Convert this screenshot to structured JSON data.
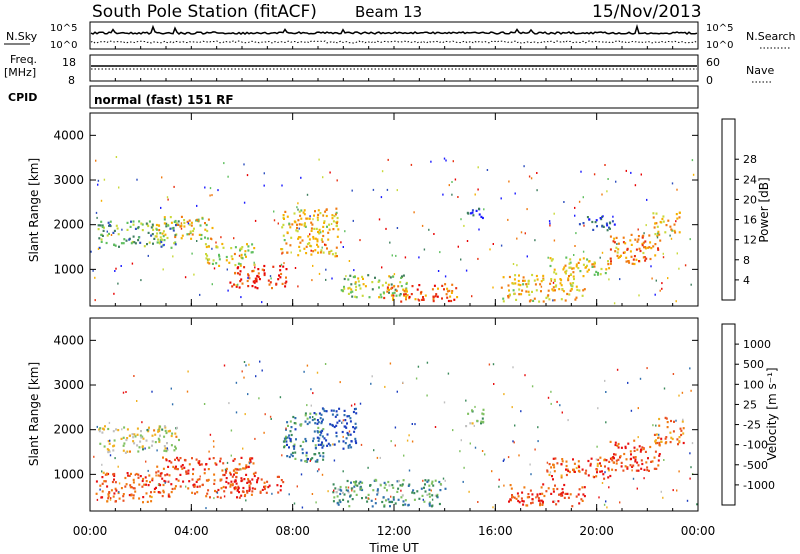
{
  "header": {
    "station": "South Pole Station (fitACF)",
    "beam": "Beam 13",
    "date": "15/Nov/2013"
  },
  "status_panels": {
    "nsky_label": "N.Sky",
    "nsearch_label": "N.Search",
    "noise_left_ticks": [
      "10^5",
      "10^0"
    ],
    "noise_right_ticks": [
      "10^5",
      "10^0"
    ],
    "freq_label_line1": "Freq.",
    "freq_label_line2": "[MHz]",
    "freq_ticks": [
      "18",
      "8"
    ],
    "nave_label": "Nave",
    "nave_ticks": [
      "60",
      "0"
    ],
    "cpid_label": "CPID",
    "cpid_value": "normal (fast) 151 RF"
  },
  "chart_data": [
    {
      "type": "heatmap",
      "panel": "power",
      "ylabel": "Slant Range [km]",
      "xlabel": "",
      "xlim": [
        0,
        24
      ],
      "ylim": [
        180,
        4500
      ],
      "y_ticks": [
        "1000",
        "2000",
        "3000",
        "4000"
      ],
      "colorbar": {
        "label": "Power [dB]",
        "ticks": [
          "4",
          "8",
          "12",
          "16",
          "20",
          "24",
          "28"
        ],
        "colors": [
          "#1a1aff",
          "#2e4fbf",
          "#3f7f5f",
          "#5fbf5f",
          "#c9d93a",
          "#f5b000",
          "#f07a10",
          "#e83010",
          "#e80000"
        ]
      },
      "regions": [
        {
          "t0": 0.3,
          "t1": 3.5,
          "r0": 1500,
          "r1": 2100,
          "level": 0.35
        },
        {
          "t0": 2.5,
          "t1": 4.8,
          "r0": 1700,
          "r1": 2200,
          "level": 0.55
        },
        {
          "t0": 4.5,
          "t1": 6.5,
          "r0": 1100,
          "r1": 1600,
          "level": 0.5
        },
        {
          "t0": 5.5,
          "t1": 7.8,
          "r0": 600,
          "r1": 1100,
          "level": 0.85
        },
        {
          "t0": 7.5,
          "t1": 9.8,
          "r0": 1300,
          "r1": 2400,
          "level": 0.6
        },
        {
          "t0": 9.8,
          "t1": 12.5,
          "r0": 400,
          "r1": 900,
          "level": 0.45
        },
        {
          "t0": 11.5,
          "t1": 14.5,
          "r0": 300,
          "r1": 700,
          "level": 0.75
        },
        {
          "t0": 16.2,
          "t1": 19.5,
          "r0": 300,
          "r1": 900,
          "level": 0.6
        },
        {
          "t0": 18,
          "t1": 20.5,
          "r0": 900,
          "r1": 1300,
          "level": 0.55
        },
        {
          "t0": 20.5,
          "t1": 22.5,
          "r0": 1100,
          "r1": 1800,
          "level": 0.7
        },
        {
          "t0": 22.2,
          "t1": 23.3,
          "r0": 1800,
          "r1": 2300,
          "level": 0.6
        },
        {
          "t0": 19.3,
          "t1": 20.8,
          "r0": 1900,
          "r1": 2200,
          "level": 0.15
        },
        {
          "t0": 14.8,
          "t1": 15.5,
          "r0": 2100,
          "r1": 2400,
          "level": 0.1
        }
      ]
    },
    {
      "type": "heatmap",
      "panel": "velocity",
      "ylabel": "Slant Range [km]",
      "xlabel": "Time UT",
      "xlim": [
        0,
        24
      ],
      "ylim": [
        180,
        4500
      ],
      "x_ticks": [
        "00:00",
        "04:00",
        "08:00",
        "12:00",
        "16:00",
        "20:00",
        "00:00"
      ],
      "y_ticks": [
        "1000",
        "2000",
        "3000",
        "4000"
      ],
      "colorbar": {
        "label": "Velocity [m s⁻¹]",
        "ticks": [
          "1000",
          "500",
          "100",
          "25",
          "-25",
          "-100",
          "-500",
          "-1000"
        ],
        "colors": [
          "#1a3cbf",
          "#2f6fae",
          "#3a8a5a",
          "#7fc060",
          "#bfbfbf",
          "#f0b020",
          "#f07a10",
          "#ea5020",
          "#e81010"
        ]
      },
      "regions": [
        {
          "t0": 0.3,
          "t1": 3.5,
          "r0": 1500,
          "r1": 2100,
          "level": 0.5
        },
        {
          "t0": 0.2,
          "t1": 2.5,
          "r0": 400,
          "r1": 1100,
          "level": 0.8
        },
        {
          "t0": 2.5,
          "t1": 6.5,
          "r0": 500,
          "r1": 1400,
          "level": 0.85
        },
        {
          "t0": 5.5,
          "t1": 7.6,
          "r0": 600,
          "r1": 1000,
          "level": 0.9
        },
        {
          "t0": 7.6,
          "t1": 9.2,
          "r0": 1300,
          "r1": 2400,
          "level": 0.25
        },
        {
          "t0": 8.8,
          "t1": 10.5,
          "r0": 1600,
          "r1": 2500,
          "level": 0.05
        },
        {
          "t0": 9.5,
          "t1": 14.0,
          "r0": 300,
          "r1": 900,
          "level": 0.3
        },
        {
          "t0": 16.5,
          "t1": 19.5,
          "r0": 300,
          "r1": 800,
          "level": 0.85
        },
        {
          "t0": 18,
          "t1": 20.8,
          "r0": 900,
          "r1": 1400,
          "level": 0.8
        },
        {
          "t0": 20.5,
          "t1": 22.5,
          "r0": 1100,
          "r1": 1800,
          "level": 0.85
        },
        {
          "t0": 22.2,
          "t1": 23.4,
          "r0": 1700,
          "r1": 2300,
          "level": 0.75
        },
        {
          "t0": 14.8,
          "t1": 15.5,
          "r0": 2100,
          "r1": 2500,
          "level": 0.45
        }
      ]
    }
  ]
}
